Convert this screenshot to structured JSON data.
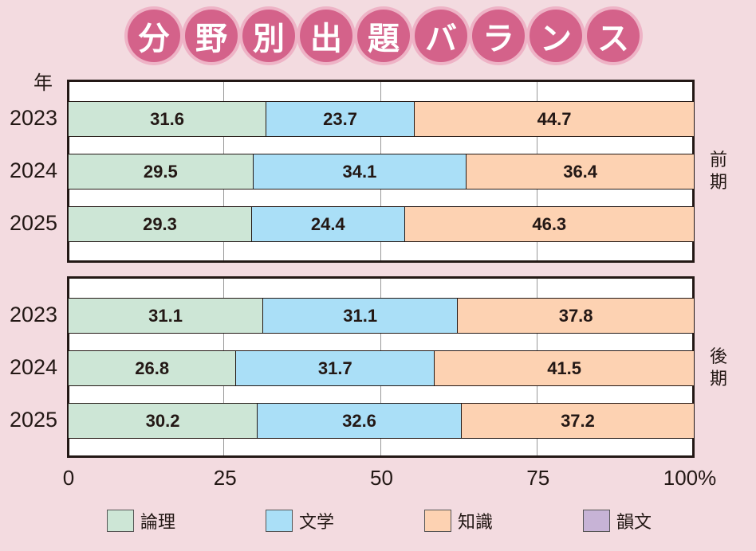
{
  "title_chars": [
    "分",
    "野",
    "別",
    "出",
    "題",
    "バ",
    "ラ",
    "ン",
    "ス"
  ],
  "chart_data": {
    "type": "bar",
    "stacked": true,
    "orientation": "horizontal",
    "title": "分野別出題バランス",
    "ylabel": "年",
    "xlim": [
      0,
      100
    ],
    "x_ticks": [
      "0",
      "25",
      "50",
      "75",
      "100%"
    ],
    "legend": [
      {
        "name": "論理",
        "color": "#cde6d6"
      },
      {
        "name": "文学",
        "color": "#aadff7"
      },
      {
        "name": "知識",
        "color": "#fdd2b2"
      },
      {
        "name": "韻文",
        "color": "#c7b3d6"
      }
    ],
    "panels": [
      {
        "label": "前期",
        "categories": [
          "2023",
          "2024",
          "2025"
        ],
        "series": [
          {
            "name": "論理",
            "values": [
              31.6,
              29.5,
              29.3
            ]
          },
          {
            "name": "文学",
            "values": [
              23.7,
              34.1,
              24.4
            ]
          },
          {
            "name": "知識",
            "values": [
              44.7,
              36.4,
              46.3
            ]
          }
        ]
      },
      {
        "label": "後期",
        "categories": [
          "2023",
          "2024",
          "2025"
        ],
        "series": [
          {
            "name": "論理",
            "values": [
              31.1,
              26.8,
              30.2
            ]
          },
          {
            "name": "文学",
            "values": [
              31.1,
              31.7,
              32.6
            ]
          },
          {
            "name": "知識",
            "values": [
              37.8,
              41.5,
              37.2
            ]
          }
        ]
      }
    ]
  }
}
